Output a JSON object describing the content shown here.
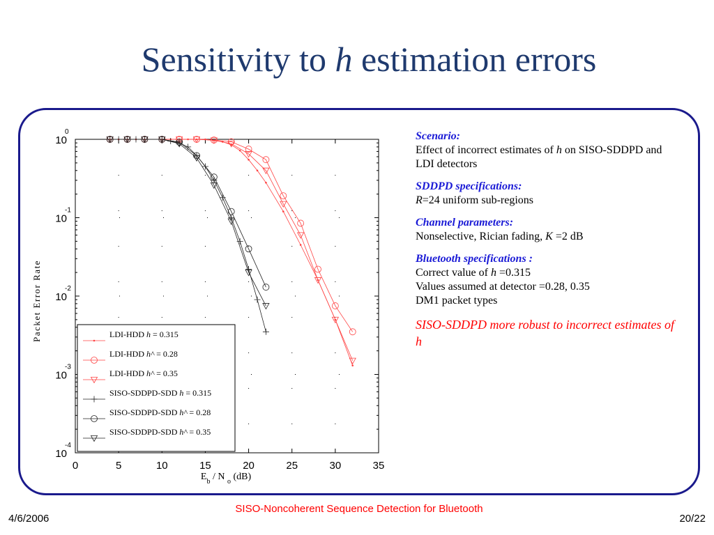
{
  "slide": {
    "title_before": "Sensitivity to ",
    "title_italic": "h",
    "title_after": " estimation errors"
  },
  "notes": {
    "scenario_heading": "Scenario:",
    "scenario_text_1": "Effect of incorrect estimates of ",
    "scenario_h": "h",
    "scenario_text_2": " on SISO-SDDPD and LDI detectors",
    "sddpd_heading": "SDDPD specifications:",
    "sddpd_R": "R",
    "sddpd_text": "=24 uniform sub-regions",
    "channel_heading": "Channel parameters:",
    "channel_text_1": "Nonselective, Rician fading, ",
    "channel_K": "K",
    "channel_text_2": " =2 dB",
    "bt_heading": "Bluetooth specifications :",
    "bt_line1_a": "Correct value of ",
    "bt_line1_h": "h",
    "bt_line1_b": " =0.315",
    "bt_line2": "Values assumed at detector =0.28, 0.35",
    "bt_line3": "DM1 packet types",
    "conclusion": "SISO-SDDPD more robust to incorrect estimates of h"
  },
  "footer": {
    "date": "4/6/2006",
    "title": "SISO-Noncoherent Sequence  Detection for Bluetooth",
    "page": "20/22"
  },
  "colors": {
    "title": "#1f3a6e",
    "frame": "#1a1a8c",
    "heading": "#1a1ad6",
    "ldi": "#ff4040",
    "siso": "#202020",
    "red_text": "#ff0000"
  },
  "chart_data": {
    "type": "line",
    "xlabel": "Eb / No (dB)",
    "ylabel": "Packet Error Rate",
    "xlim": [
      0,
      35
    ],
    "ylim": [
      0.0001,
      1
    ],
    "yscale": "log",
    "xticks": [
      "0",
      "5",
      "10",
      "15",
      "20",
      "25",
      "30",
      "35"
    ],
    "yticks": [
      "-4",
      "-3",
      "-2",
      "-1",
      "0"
    ],
    "legend_position": "bottom-left",
    "series": [
      {
        "name": "LDI-HDD h = 0.315",
        "legend_prefix": "LDI-HDD ",
        "legend_h": "h",
        "legend_suffix": " = 0.315",
        "color": "#ff4040",
        "marker": "dot",
        "x": [
          4,
          5,
          6,
          7,
          8,
          10,
          11,
          12,
          13,
          14,
          15,
          16,
          17,
          18,
          19,
          20,
          21,
          22,
          24,
          26,
          28,
          30,
          32
        ],
        "y": [
          1,
          1,
          1,
          1,
          1,
          1,
          1,
          1,
          1,
          1,
          1,
          0.97,
          0.93,
          0.85,
          0.72,
          0.55,
          0.4,
          0.28,
          0.12,
          0.045,
          0.016,
          0.005,
          0.0013
        ]
      },
      {
        "name": "LDI-HDD h^ = 0.28",
        "legend_prefix": "LDI-HDD ",
        "legend_h": "h^",
        "legend_suffix": " = 0.28",
        "color": "#ff4040",
        "marker": "circle",
        "x": [
          4,
          6,
          8,
          10,
          12,
          14,
          16,
          18,
          20,
          22,
          24,
          26,
          28,
          30,
          32
        ],
        "y": [
          1,
          1,
          1,
          1,
          1,
          1,
          0.98,
          0.93,
          0.75,
          0.55,
          0.19,
          0.085,
          0.022,
          0.0075,
          0.0035
        ]
      },
      {
        "name": "LDI-HDD h^ = 0.35",
        "legend_prefix": "LDI-HDD ",
        "legend_h": "h^",
        "legend_suffix": " = 0.35",
        "color": "#ff4040",
        "marker": "triangle",
        "x": [
          4,
          6,
          8,
          10,
          12,
          14,
          16,
          18,
          20,
          22,
          24,
          26,
          28,
          30,
          32
        ],
        "y": [
          1,
          1,
          1,
          1,
          1,
          1,
          0.97,
          0.88,
          0.65,
          0.4,
          0.15,
          0.06,
          0.016,
          0.005,
          0.0015
        ]
      },
      {
        "name": "SISO-SDDPD-SDD h = 0.315",
        "legend_prefix": "SISO-SDDPD-SDD ",
        "legend_h": "h",
        "legend_suffix": " = 0.315",
        "color": "#202020",
        "marker": "plus",
        "x": [
          4,
          5,
          6,
          7,
          8,
          10,
          11,
          12,
          13,
          14,
          15,
          16,
          17,
          18,
          19,
          20,
          21,
          22
        ],
        "y": [
          1,
          1,
          1,
          1,
          1,
          1,
          0.95,
          0.9,
          0.8,
          0.62,
          0.45,
          0.3,
          0.18,
          0.1,
          0.05,
          0.022,
          0.009,
          0.0035
        ]
      },
      {
        "name": "SISO-SDDPD-SDD h^ = 0.28",
        "legend_prefix": "SISO-SDDPD-SDD ",
        "legend_h": "h^",
        "legend_suffix": " = 0.28",
        "color": "#202020",
        "marker": "circle",
        "x": [
          4,
          6,
          8,
          10,
          12,
          14,
          16,
          18,
          20,
          22
        ],
        "y": [
          1,
          1,
          1,
          1,
          0.92,
          0.62,
          0.33,
          0.12,
          0.04,
          0.013
        ]
      },
      {
        "name": "SISO-SDDPD-SDD h^ = 0.35",
        "legend_prefix": "SISO-SDDPD-SDD ",
        "legend_h": "h^",
        "legend_suffix": " = 0.35",
        "color": "#202020",
        "marker": "triangle",
        "x": [
          4,
          6,
          8,
          10,
          12,
          14,
          16,
          18,
          20,
          22
        ],
        "y": [
          1,
          1,
          1,
          1,
          0.88,
          0.58,
          0.26,
          0.09,
          0.02,
          0.0075
        ]
      }
    ]
  }
}
